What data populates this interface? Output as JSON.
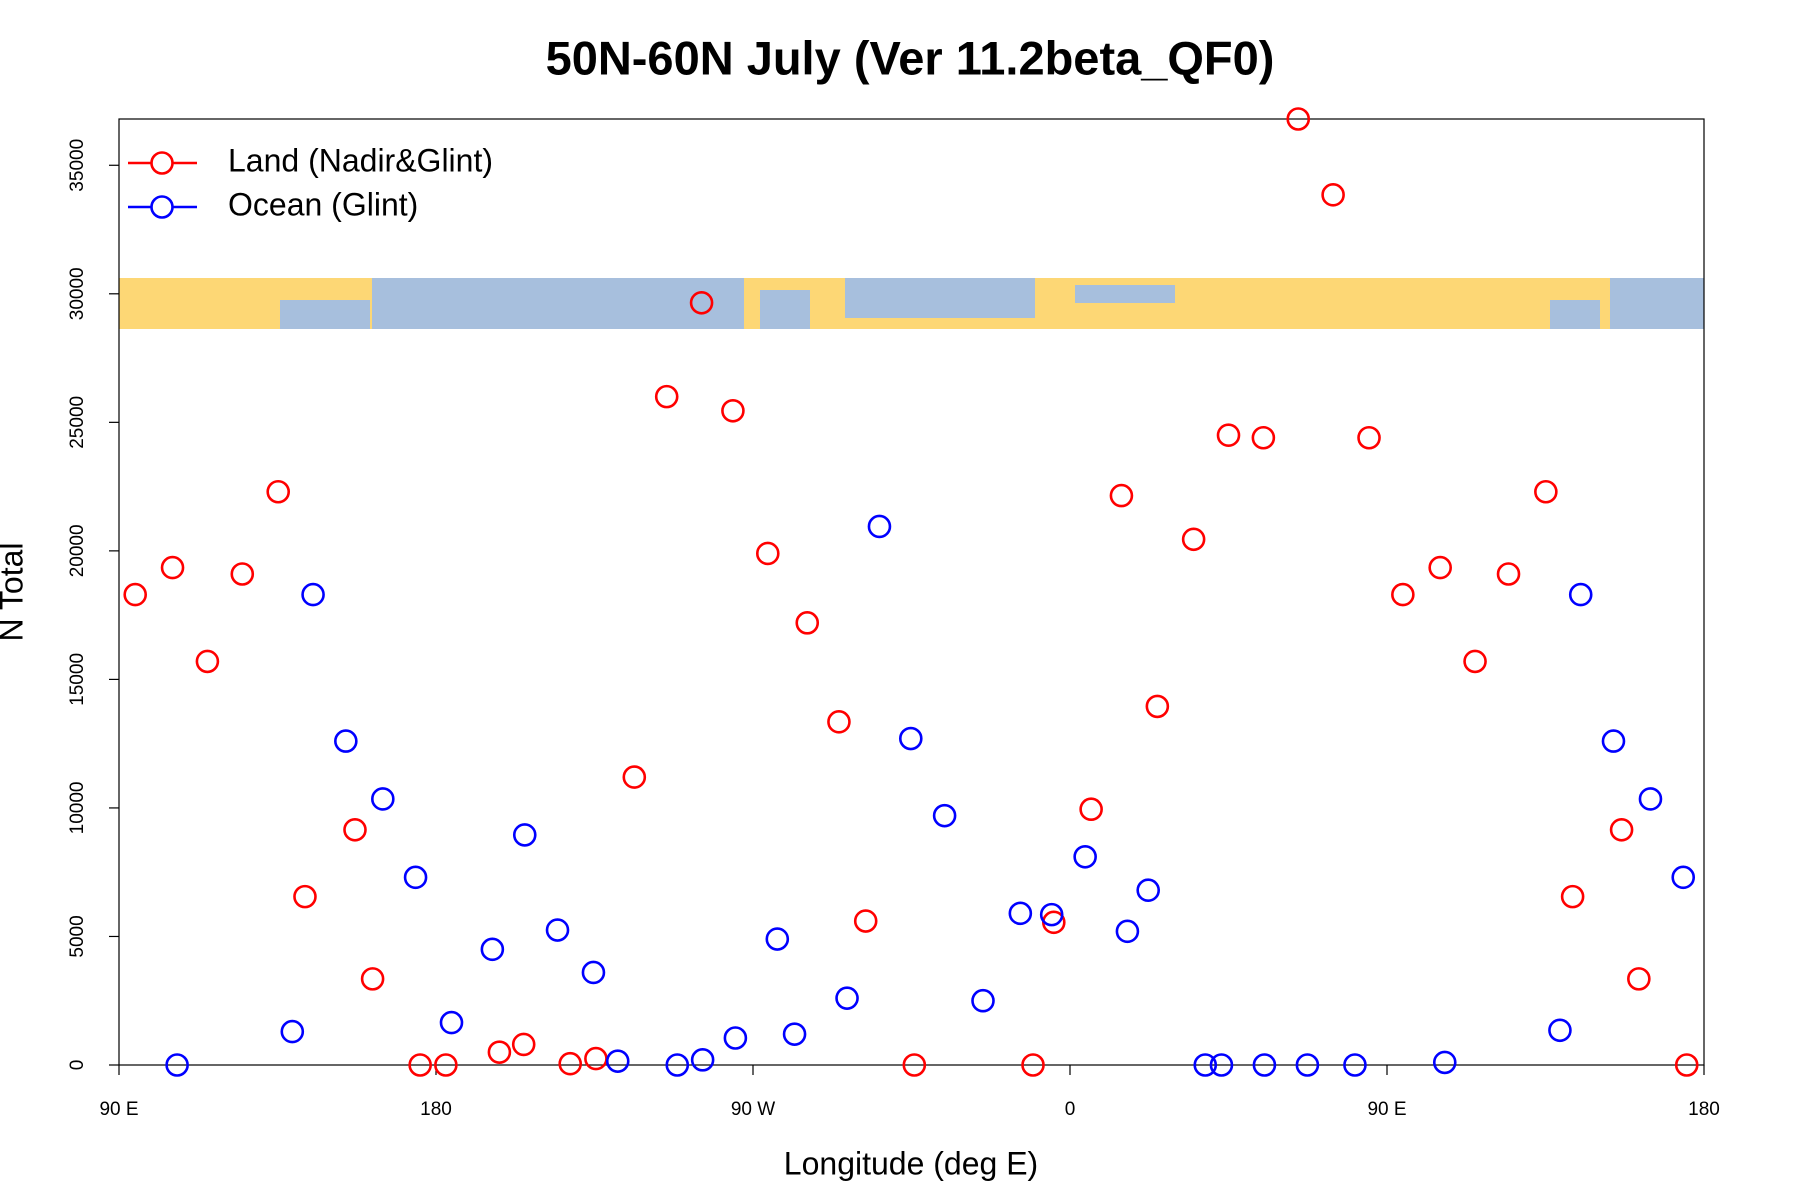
{
  "chart_data": {
    "type": "scatter",
    "title": "50N-60N July (Ver 11.2beta_QF0)",
    "xlabel": "Longitude (deg E)",
    "ylabel": "N Total",
    "xlim": [
      90,
      540
    ],
    "ylim": [
      0,
      36800
    ],
    "xticks": [
      {
        "value": 90,
        "label": "90 E"
      },
      180,
      {
        "value": 270,
        "label": "90 W"
      },
      {
        "value": 360,
        "label": "0"
      },
      {
        "value": 450,
        "label": "90 E"
      },
      {
        "value": 540,
        "label": "180"
      }
    ],
    "yticks": [
      0,
      5000,
      10000,
      15000,
      20000,
      25000,
      30000,
      35000
    ],
    "legend": "topleft",
    "series": [
      {
        "name": "Land (Nadir&Glint)",
        "color": "#ff0000",
        "x": [
          94.6,
          105.2,
          115.1,
          125.0,
          135.2,
          142.8,
          157.0,
          162.0,
          175.5,
          182.8,
          198.0,
          204.9,
          218.1,
          225.4,
          236.3,
          245.5,
          255.4,
          264.3,
          274.2,
          285.4,
          294.4,
          302.0,
          315.8,
          349.5,
          355.4,
          366.0,
          374.6,
          384.8,
          395.1,
          405.0,
          414.9,
          424.8,
          434.7,
          444.9,
          454.5,
          465.1,
          475.0,
          484.5,
          495.1,
          502.7,
          516.6,
          521.5,
          535.1
        ],
        "values": [
          18300,
          19350,
          15700,
          19100,
          22300,
          6550,
          9150,
          3350,
          0,
          0,
          500,
          800,
          50,
          250,
          11200,
          26000,
          29650,
          25450,
          19900,
          17200,
          13350,
          5600,
          0,
          0,
          5550,
          9950,
          22150,
          13950,
          20450,
          24500,
          24400,
          36800,
          33850,
          24400,
          18300,
          19350,
          15700,
          19100,
          22300,
          6550,
          9150,
          3350,
          0
        ]
      },
      {
        "name": "Ocean (Glint)",
        "color": "#0000ff",
        "x": [
          106.5,
          139.2,
          145.1,
          154.4,
          164.9,
          174.2,
          184.4,
          196.0,
          205.2,
          214.5,
          224.7,
          231.6,
          248.5,
          255.7,
          265.0,
          276.9,
          281.8,
          296.7,
          305.9,
          314.8,
          324.4,
          335.3,
          345.9,
          354.8,
          364.3,
          376.3,
          382.2,
          398.4,
          403.0,
          415.2,
          427.4,
          440.9,
          466.4,
          499.1,
          505.0,
          514.3,
          524.8,
          534.1
        ],
        "values": [
          0,
          1300,
          18300,
          12600,
          10350,
          7300,
          1650,
          4500,
          8950,
          5250,
          3600,
          150,
          0,
          200,
          1050,
          4900,
          1200,
          2600,
          20950,
          12700,
          9700,
          2500,
          5900,
          5850,
          8100,
          5200,
          6800,
          0,
          0,
          0,
          0,
          0,
          100,
          1350,
          18300,
          12600,
          10350,
          7300
        ]
      }
    ]
  }
}
